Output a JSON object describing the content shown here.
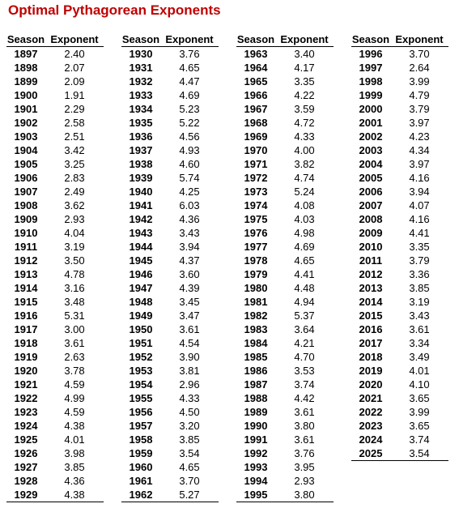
{
  "title": "Optimal Pythagorean Exponents",
  "header": {
    "season": "Season",
    "exponent": "Exponent"
  },
  "columns": [
    {
      "rows": [
        [
          "1897",
          "2.40"
        ],
        [
          "1898",
          "2.07"
        ],
        [
          "1899",
          "2.09"
        ],
        [
          "1900",
          "1.91"
        ],
        [
          "1901",
          "2.29"
        ],
        [
          "1902",
          "2.58"
        ],
        [
          "1903",
          "2.51"
        ],
        [
          "1904",
          "3.42"
        ],
        [
          "1905",
          "3.25"
        ],
        [
          "1906",
          "2.83"
        ],
        [
          "1907",
          "2.49"
        ],
        [
          "1908",
          "3.62"
        ],
        [
          "1909",
          "2.93"
        ],
        [
          "1910",
          "4.04"
        ],
        [
          "1911",
          "3.19"
        ],
        [
          "1912",
          "3.50"
        ],
        [
          "1913",
          "4.78"
        ],
        [
          "1914",
          "3.16"
        ],
        [
          "1915",
          "3.48"
        ],
        [
          "1916",
          "5.31"
        ],
        [
          "1917",
          "3.00"
        ],
        [
          "1918",
          "3.61"
        ],
        [
          "1919",
          "2.63"
        ],
        [
          "1920",
          "3.78"
        ],
        [
          "1921",
          "4.59"
        ],
        [
          "1922",
          "4.99"
        ],
        [
          "1923",
          "4.59"
        ],
        [
          "1924",
          "4.38"
        ],
        [
          "1925",
          "4.01"
        ],
        [
          "1926",
          "3.98"
        ],
        [
          "1927",
          "3.85"
        ],
        [
          "1928",
          "4.36"
        ],
        [
          "1929",
          "4.38"
        ]
      ]
    },
    {
      "rows": [
        [
          "1930",
          "3.76"
        ],
        [
          "1931",
          "4.65"
        ],
        [
          "1932",
          "4.47"
        ],
        [
          "1933",
          "4.69"
        ],
        [
          "1934",
          "5.23"
        ],
        [
          "1935",
          "5.22"
        ],
        [
          "1936",
          "4.56"
        ],
        [
          "1937",
          "4.93"
        ],
        [
          "1938",
          "4.60"
        ],
        [
          "1939",
          "5.74"
        ],
        [
          "1940",
          "4.25"
        ],
        [
          "1941",
          "6.03"
        ],
        [
          "1942",
          "4.36"
        ],
        [
          "1943",
          "3.43"
        ],
        [
          "1944",
          "3.94"
        ],
        [
          "1945",
          "4.37"
        ],
        [
          "1946",
          "3.60"
        ],
        [
          "1947",
          "4.39"
        ],
        [
          "1948",
          "3.45"
        ],
        [
          "1949",
          "3.47"
        ],
        [
          "1950",
          "3.61"
        ],
        [
          "1951",
          "4.54"
        ],
        [
          "1952",
          "3.90"
        ],
        [
          "1953",
          "3.81"
        ],
        [
          "1954",
          "2.96"
        ],
        [
          "1955",
          "4.33"
        ],
        [
          "1956",
          "4.50"
        ],
        [
          "1957",
          "3.20"
        ],
        [
          "1958",
          "3.85"
        ],
        [
          "1959",
          "3.54"
        ],
        [
          "1960",
          "4.65"
        ],
        [
          "1961",
          "3.70"
        ],
        [
          "1962",
          "5.27"
        ]
      ]
    },
    {
      "rows": [
        [
          "1963",
          "3.40"
        ],
        [
          "1964",
          "4.17"
        ],
        [
          "1965",
          "3.35"
        ],
        [
          "1966",
          "4.22"
        ],
        [
          "1967",
          "3.59"
        ],
        [
          "1968",
          "4.72"
        ],
        [
          "1969",
          "4.33"
        ],
        [
          "1970",
          "4.00"
        ],
        [
          "1971",
          "3.82"
        ],
        [
          "1972",
          "4.74"
        ],
        [
          "1973",
          "5.24"
        ],
        [
          "1974",
          "4.08"
        ],
        [
          "1975",
          "4.03"
        ],
        [
          "1976",
          "4.98"
        ],
        [
          "1977",
          "4.69"
        ],
        [
          "1978",
          "4.65"
        ],
        [
          "1979",
          "4.41"
        ],
        [
          "1980",
          "4.48"
        ],
        [
          "1981",
          "4.94"
        ],
        [
          "1982",
          "5.37"
        ],
        [
          "1983",
          "3.64"
        ],
        [
          "1984",
          "4.21"
        ],
        [
          "1985",
          "4.70"
        ],
        [
          "1986",
          "3.53"
        ],
        [
          "1987",
          "3.74"
        ],
        [
          "1988",
          "4.42"
        ],
        [
          "1989",
          "3.61"
        ],
        [
          "1990",
          "3.80"
        ],
        [
          "1991",
          "3.61"
        ],
        [
          "1992",
          "3.76"
        ],
        [
          "1993",
          "3.95"
        ],
        [
          "1994",
          "2.93"
        ],
        [
          "1995",
          "3.80"
        ]
      ]
    },
    {
      "rows": [
        [
          "1996",
          "3.70"
        ],
        [
          "1997",
          "2.64"
        ],
        [
          "1998",
          "3.99"
        ],
        [
          "1999",
          "4.79"
        ],
        [
          "2000",
          "3.79"
        ],
        [
          "2001",
          "3.97"
        ],
        [
          "2002",
          "4.23"
        ],
        [
          "2003",
          "4.34"
        ],
        [
          "2004",
          "3.97"
        ],
        [
          "2005",
          "4.16"
        ],
        [
          "2006",
          "3.94"
        ],
        [
          "2007",
          "4.07"
        ],
        [
          "2008",
          "4.16"
        ],
        [
          "2009",
          "4.41"
        ],
        [
          "2010",
          "3.35"
        ],
        [
          "2011",
          "3.79"
        ],
        [
          "2012",
          "3.36"
        ],
        [
          "2013",
          "3.85"
        ],
        [
          "2014",
          "3.19"
        ],
        [
          "2015",
          "3.43"
        ],
        [
          "2016",
          "3.61"
        ],
        [
          "2017",
          "3.34"
        ],
        [
          "2018",
          "3.49"
        ],
        [
          "2019",
          "4.01"
        ],
        [
          "2020",
          "4.10"
        ],
        [
          "2021",
          "3.65"
        ],
        [
          "2022",
          "3.99"
        ],
        [
          "2023",
          "3.65"
        ],
        [
          "2024",
          "3.74"
        ],
        [
          "2025",
          "3.54"
        ]
      ]
    }
  ]
}
